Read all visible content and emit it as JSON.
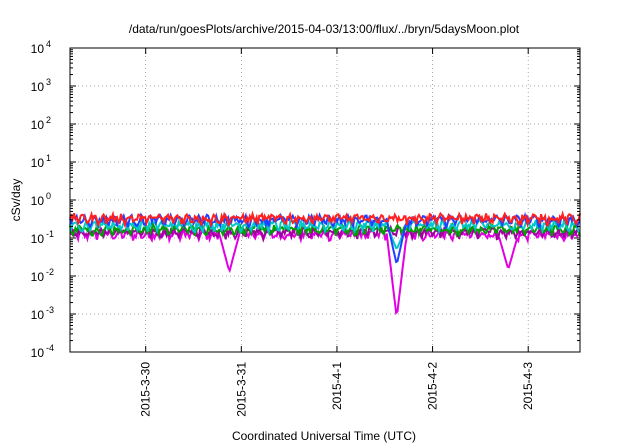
{
  "chart_data": {
    "type": "line",
    "title": "/data/run/goesPlots/archive/2015-04-03/13:00/flux/../bryn/5daysMoon.plot",
    "xlabel": "Coordinated Universal Time (UTC)",
    "ylabel": "cSv/day",
    "yscale": "log",
    "ylim": [
      0.0001,
      10000
    ],
    "xlim": [
      "2015-03-29 05:00",
      "2015-04-03 13:00"
    ],
    "grid": true,
    "x_ticks": [
      {
        "label": "2015-3-30",
        "value": "2015-03-30"
      },
      {
        "label": "2015-3-31",
        "value": "2015-03-31"
      },
      {
        "label": "2015-4-1",
        "value": "2015-04-01"
      },
      {
        "label": "2015-4-2",
        "value": "2015-04-02"
      },
      {
        "label": "2015-4-3",
        "value": "2015-04-03"
      }
    ],
    "y_ticks": [
      {
        "base": "10",
        "exp": "-4",
        "value": 0.0001
      },
      {
        "base": "10",
        "exp": "-3",
        "value": 0.001
      },
      {
        "base": "10",
        "exp": "-2",
        "value": 0.01
      },
      {
        "base": "10",
        "exp": "-1",
        "value": 0.1
      },
      {
        "base": "10",
        "exp": "0",
        "value": 1
      },
      {
        "base": "10",
        "exp": "1",
        "value": 10
      },
      {
        "base": "10",
        "exp": "2",
        "value": 100
      },
      {
        "base": "10",
        "exp": "3",
        "value": 1000
      },
      {
        "base": "10",
        "exp": "4",
        "value": 10000
      }
    ],
    "series": [
      {
        "color": "#ff2020",
        "baseline": 0.33,
        "dips": []
      },
      {
        "color": "#2040ff",
        "baseline": 0.3,
        "dips": [
          {
            "x": "2015-04-01 15:00",
            "y": 0.02
          }
        ]
      },
      {
        "color": "#00c8c8",
        "baseline": 0.22,
        "dips": [
          {
            "x": "2015-04-01 15:00",
            "y": 0.05
          }
        ]
      },
      {
        "color": "#00a000",
        "baseline": 0.17,
        "dips": []
      },
      {
        "color": "#a000a0",
        "baseline": 0.145,
        "dips": []
      },
      {
        "color": "#e000e0",
        "baseline": 0.125,
        "dips": [
          {
            "x": "2015-03-30 21:00",
            "y": 0.013
          },
          {
            "x": "2015-04-01 15:00",
            "y": 0.0008
          },
          {
            "x": "2015-04-02 19:00",
            "y": 0.015
          }
        ]
      }
    ]
  }
}
